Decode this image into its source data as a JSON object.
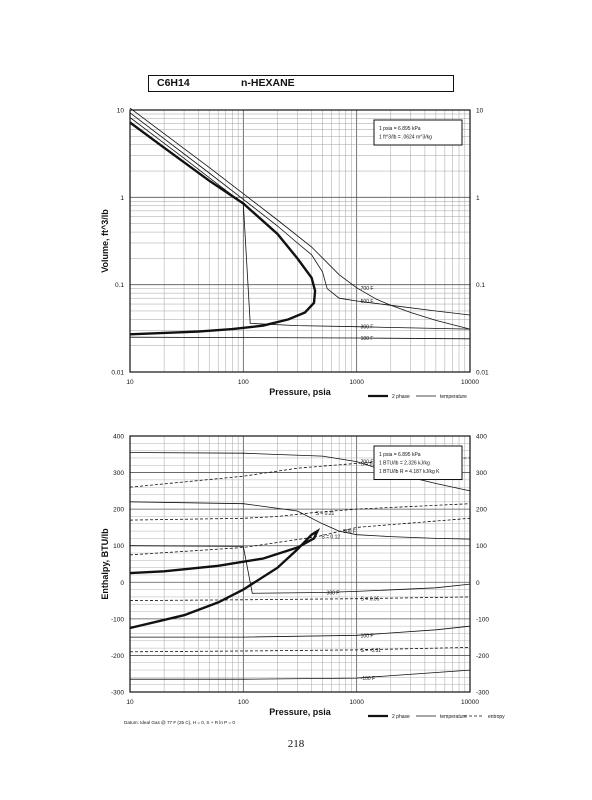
{
  "header": {
    "formula": "C6H14",
    "compound": "n-HEXANE"
  },
  "page_number": "218",
  "chart_data": [
    {
      "type": "line",
      "id": "volume",
      "xlabel": "Pressure, psia",
      "ylabel": "Volume, ft^3/lb",
      "xscale": "log",
      "yscale": "log",
      "xlim": [
        10,
        10000
      ],
      "ylim": [
        0.01,
        10
      ],
      "xticks": [
        "10",
        "100",
        "1000",
        "10000"
      ],
      "yticks": [
        "0.01",
        "0.1",
        "1",
        "10"
      ],
      "conversion_box": [
        "1 psia = 6.895 kPa",
        "1 ft^3/lb = .0624 m^3/kg"
      ],
      "legend": [
        "2 phase",
        "temperature"
      ],
      "legend_position": "bottom-right",
      "grid": true,
      "series": [
        {
          "name": "2 phase",
          "style": "bold",
          "points": [
            [
              10,
              7.2
            ],
            [
              20,
              3.7
            ],
            [
              50,
              1.55
            ],
            [
              100,
              0.85
            ],
            [
              200,
              0.38
            ],
            [
              300,
              0.2
            ],
            [
              400,
              0.12
            ],
            [
              430,
              0.085
            ],
            [
              420,
              0.062
            ],
            [
              350,
              0.048
            ],
            [
              250,
              0.04
            ],
            [
              150,
              0.034
            ],
            [
              80,
              0.031
            ],
            [
              40,
              0.029
            ],
            [
              20,
              0.028
            ],
            [
              10,
              0.027
            ]
          ]
        },
        {
          "name": "700 F",
          "label": "700 F",
          "style": "thin",
          "points": [
            [
              10,
              10.5
            ],
            [
              50,
              2.2
            ],
            [
              100,
              1.1
            ],
            [
              200,
              0.55
            ],
            [
              400,
              0.27
            ],
            [
              700,
              0.13
            ],
            [
              1000,
              0.092
            ],
            [
              1500,
              0.068
            ],
            [
              2000,
              0.058
            ],
            [
              3000,
              0.048
            ],
            [
              5000,
              0.039
            ],
            [
              10000,
              0.031
            ]
          ]
        },
        {
          "name": "500 F",
          "label": "500 F",
          "style": "thin",
          "points": [
            [
              10,
              9.3
            ],
            [
              50,
              1.9
            ],
            [
              100,
              0.95
            ],
            [
              200,
              0.47
            ],
            [
              300,
              0.3
            ],
            [
              400,
              0.22
            ],
            [
              500,
              0.14
            ],
            [
              550,
              0.09
            ],
            [
              700,
              0.07
            ],
            [
              1000,
              0.065
            ],
            [
              2000,
              0.058
            ],
            [
              5000,
              0.05
            ],
            [
              10000,
              0.045
            ]
          ]
        },
        {
          "name": "300 F",
          "label": "300 F",
          "style": "thin",
          "points": [
            [
              10,
              8.2
            ],
            [
              30,
              2.8
            ],
            [
              60,
              1.4
            ],
            [
              100,
              0.85
            ],
            [
              115,
              0.036
            ],
            [
              300,
              0.034
            ],
            [
              1000,
              0.033
            ],
            [
              10000,
              0.031
            ]
          ]
        },
        {
          "name": "100 F",
          "label": "100 F",
          "style": "thin",
          "points": [
            [
              10,
              0.025
            ],
            [
              100,
              0.0248
            ],
            [
              1000,
              0.0245
            ],
            [
              10000,
              0.024
            ]
          ]
        }
      ]
    },
    {
      "type": "line",
      "id": "enthalpy",
      "xlabel": "Pressure, psia",
      "ylabel": "Enthalpy, BTU/lb",
      "xscale": "log",
      "yscale": "linear",
      "xlim": [
        10,
        10000
      ],
      "ylim": [
        -300,
        400
      ],
      "xticks": [
        "10",
        "100",
        "1000",
        "10000"
      ],
      "yticks": [
        "-300",
        "-200",
        "-100",
        "0",
        "100",
        "200",
        "300",
        "400"
      ],
      "conversion_box": [
        "1 psia = 6.895 kPa",
        "1 BTU/lb = 2.326 kJ/kg",
        "1 BTU/lb R = 4.187 kJ/kg K"
      ],
      "legend": [
        "2 phase",
        "temperature",
        "entropy"
      ],
      "legend_position": "bottom-right",
      "footnote": "Datum: Ideal Gas @ 77 F (25 C), H = 0, S + R ln P = 0",
      "grid": true,
      "series": [
        {
          "name": "2 phase",
          "style": "bold",
          "points": [
            [
              10,
              -125
            ],
            [
              30,
              -90
            ],
            [
              60,
              -55
            ],
            [
              100,
              -20
            ],
            [
              200,
              40
            ],
            [
              300,
              90
            ],
            [
              400,
              130
            ],
            [
              450,
              140
            ],
            [
              420,
              120
            ],
            [
              300,
              95
            ],
            [
              150,
              65
            ],
            [
              60,
              45
            ],
            [
              20,
              30
            ],
            [
              10,
              25
            ]
          ]
        },
        {
          "name": "700 F",
          "label": "700 F",
          "style": "thin",
          "points": [
            [
              10,
              355
            ],
            [
              100,
              353
            ],
            [
              500,
              345
            ],
            [
              1000,
              330
            ],
            [
              2000,
              300
            ],
            [
              5000,
              270
            ],
            [
              10000,
              250
            ]
          ]
        },
        {
          "name": "500 F",
          "label": "500 F",
          "style": "thin",
          "points": [
            [
              10,
              220
            ],
            [
              100,
              215
            ],
            [
              300,
              195
            ],
            [
              500,
              160
            ],
            [
              700,
              140
            ],
            [
              1000,
              130
            ],
            [
              2000,
              125
            ],
            [
              5000,
              120
            ],
            [
              10000,
              118
            ]
          ]
        },
        {
          "name": "300 F",
          "label": "300 F",
          "style": "thin",
          "points": [
            [
              10,
              100
            ],
            [
              100,
              98
            ],
            [
              120,
              -30
            ],
            [
              500,
              -28
            ],
            [
              1000,
              -25
            ],
            [
              5000,
              -15
            ],
            [
              10000,
              -5
            ]
          ]
        },
        {
          "name": "100 F",
          "label": "100 F",
          "style": "thin",
          "points": [
            [
              10,
              -150
            ],
            [
              100,
              -150
            ],
            [
              1000,
              -145
            ],
            [
              5000,
              -130
            ],
            [
              10000,
              -120
            ]
          ]
        },
        {
          "name": "-100 F",
          "label": "-100 F",
          "style": "thin",
          "points": [
            [
              10,
              -265
            ],
            [
              100,
              -265
            ],
            [
              1000,
              -262
            ],
            [
              10000,
              -240
            ]
          ]
        },
        {
          "name": "S = 0.3",
          "label": "S = 0.3",
          "style": "dashed",
          "points": [
            [
              10,
              260
            ],
            [
              100,
              290
            ],
            [
              300,
              312
            ],
            [
              1000,
              325
            ],
            [
              3000,
              335
            ],
            [
              10000,
              340
            ]
          ]
        },
        {
          "name": "S = 0.21",
          "label": "S = 0.21",
          "style": "dashed",
          "points": [
            [
              10,
              170
            ],
            [
              100,
              175
            ],
            [
              200,
              180
            ],
            [
              400,
              190
            ],
            [
              1000,
              200
            ],
            [
              10000,
              215
            ]
          ]
        },
        {
          "name": "S = 0.12",
          "label": "S = 0.12",
          "style": "dashed",
          "points": [
            [
              10,
              75
            ],
            [
              100,
              95
            ],
            [
              450,
              125
            ],
            [
              1000,
              150
            ],
            [
              10000,
              175
            ]
          ]
        },
        {
          "name": "S = 0.05",
          "label": "S = 0.05",
          "style": "dashed",
          "points": [
            [
              10,
              -50
            ],
            [
              100,
              -48
            ],
            [
              1000,
              -45
            ],
            [
              10000,
              -40
            ]
          ]
        },
        {
          "name": "S = -0.31",
          "label": "S = -0.31",
          "style": "dashed",
          "points": [
            [
              10,
              -190
            ],
            [
              100,
              -188
            ],
            [
              1000,
              -185
            ],
            [
              10000,
              -178
            ]
          ]
        }
      ]
    }
  ]
}
